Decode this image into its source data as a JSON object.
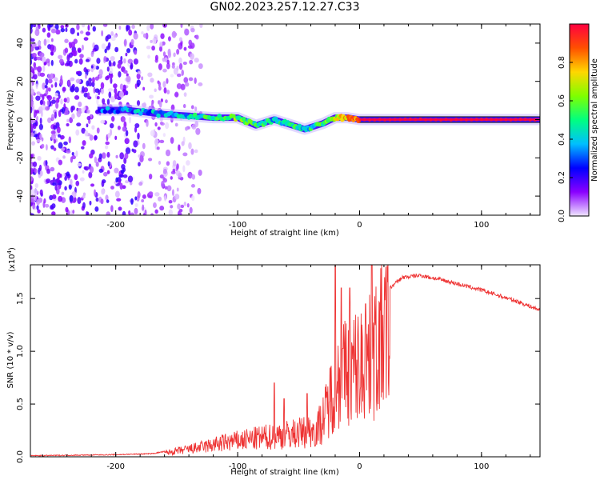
{
  "title": "GN02.2023.257.12.27.C33",
  "chart_data": [
    {
      "type": "heatmap",
      "xlabel": "Height of straight line (km)",
      "ylabel": "Frequency (Hz)",
      "xlim": [
        -270,
        148
      ],
      "ylim": [
        -50,
        50
      ],
      "xticks": [
        -200,
        -100,
        0,
        100
      ],
      "yticks": [
        -40,
        -20,
        0,
        20,
        40
      ],
      "colorbar": {
        "label": "Normalized spectral amplitude",
        "range": [
          0,
          1
        ],
        "ticks": [
          "0.0",
          "0.2",
          "0.4",
          "0.6",
          "0.8"
        ],
        "colormap": [
          "#f0e6ff",
          "#8a00ff",
          "#0000ff",
          "#00bfff",
          "#00ff80",
          "#7fff00",
          "#ffd700",
          "#ff5000",
          "#ff0040"
        ]
      },
      "ridge": [
        {
          "x": -215,
          "f": 5,
          "a": 0.4
        },
        {
          "x": -190,
          "f": 5,
          "a": 0.45
        },
        {
          "x": -165,
          "f": 3,
          "a": 0.5
        },
        {
          "x": -140,
          "f": 2,
          "a": 0.55
        },
        {
          "x": -120,
          "f": 1,
          "a": 0.65
        },
        {
          "x": -100,
          "f": 1,
          "a": 0.7
        },
        {
          "x": -85,
          "f": -3,
          "a": 0.6
        },
        {
          "x": -70,
          "f": 0,
          "a": 0.55
        },
        {
          "x": -55,
          "f": -3,
          "a": 0.6
        },
        {
          "x": -45,
          "f": -5,
          "a": 0.55
        },
        {
          "x": -30,
          "f": -2,
          "a": 0.65
        },
        {
          "x": -20,
          "f": 1,
          "a": 0.8
        },
        {
          "x": -10,
          "f": 1,
          "a": 0.9
        },
        {
          "x": 0,
          "f": 0,
          "a": 0.95
        },
        {
          "x": 50,
          "f": 0,
          "a": 0.95
        },
        {
          "x": 100,
          "f": 0,
          "a": 0.95
        },
        {
          "x": 148,
          "f": 0,
          "a": 0.95
        }
      ]
    },
    {
      "type": "line",
      "xlabel": "Height of straight line (km)",
      "ylabel": "SNR (10 * v/v)",
      "multiplier": "(x10^4)",
      "multiplier_base": "(x10",
      "multiplier_exp": "4",
      "xlim": [
        -270,
        148
      ],
      "ylim": [
        0,
        1.82
      ],
      "xticks": [
        -200,
        -100,
        0,
        100
      ],
      "yticks": [
        "0.0",
        "0.5",
        "1.0",
        "1.5"
      ],
      "color": "#ee3333",
      "envelope": [
        {
          "x": -270,
          "y": 0.01
        },
        {
          "x": -200,
          "y": 0.02
        },
        {
          "x": -170,
          "y": 0.03
        },
        {
          "x": -150,
          "y": 0.07
        },
        {
          "x": -130,
          "y": 0.12
        },
        {
          "x": -110,
          "y": 0.18
        },
        {
          "x": -90,
          "y": 0.22
        },
        {
          "x": -70,
          "y": 0.26
        },
        {
          "x": -50,
          "y": 0.3
        },
        {
          "x": -35,
          "y": 0.34
        },
        {
          "x": -28,
          "y": 0.55
        },
        {
          "x": -20,
          "y": 0.95
        },
        {
          "x": -10,
          "y": 1.1
        },
        {
          "x": 0,
          "y": 1.15
        },
        {
          "x": 10,
          "y": 1.25
        },
        {
          "x": 20,
          "y": 1.55
        },
        {
          "x": 35,
          "y": 1.7
        },
        {
          "x": 50,
          "y": 1.72
        },
        {
          "x": 70,
          "y": 1.67
        },
        {
          "x": 100,
          "y": 1.58
        },
        {
          "x": 130,
          "y": 1.47
        },
        {
          "x": 148,
          "y": 1.39
        }
      ],
      "spikes": [
        {
          "x": -70,
          "y": 0.7
        },
        {
          "x": -62,
          "y": 0.55
        },
        {
          "x": -43,
          "y": 0.6
        },
        {
          "x": -20,
          "y": 1.82
        },
        {
          "x": -15,
          "y": 1.6
        },
        {
          "x": -8,
          "y": 1.6
        },
        {
          "x": 5,
          "y": 1.45
        },
        {
          "x": 10,
          "y": 1.82
        }
      ]
    }
  ]
}
